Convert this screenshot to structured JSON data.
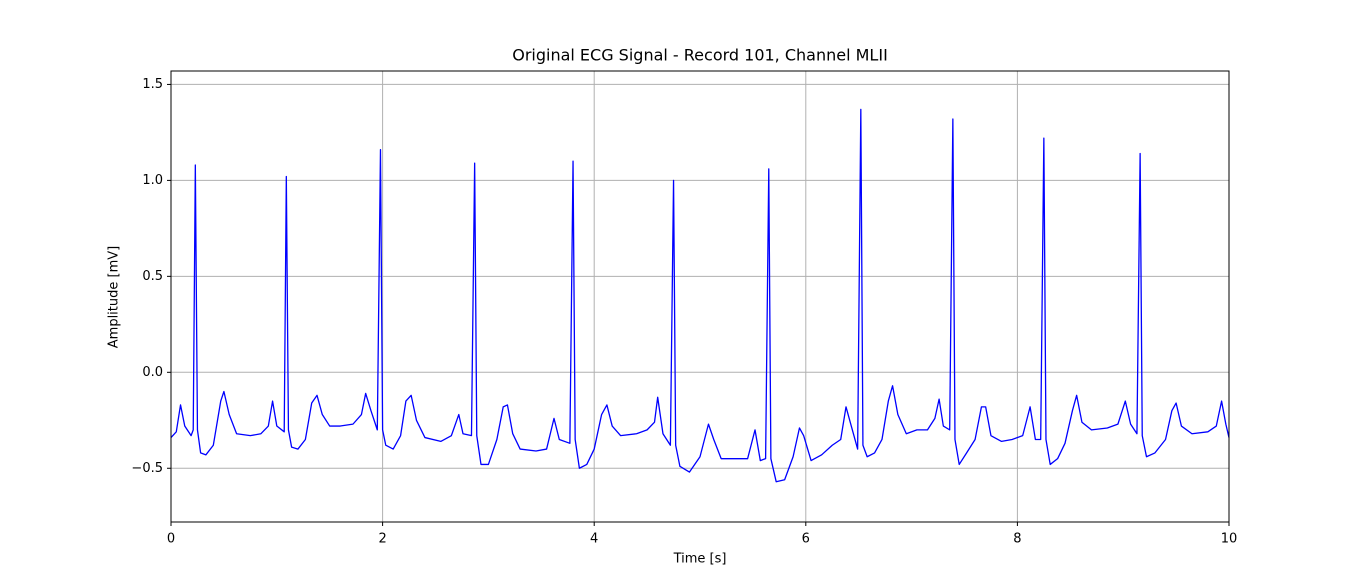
{
  "chart_data": {
    "type": "line",
    "title": "Original ECG Signal - Record 101, Channel MLII",
    "xlabel": "Time [s]",
    "ylabel": "Amplitude [mV]",
    "color": "#0000ff",
    "grid": true,
    "xlim": [
      0,
      10
    ],
    "ylim": [
      -0.78,
      1.57
    ],
    "xticks": [
      0,
      2,
      4,
      6,
      8,
      10
    ],
    "yticks": [
      {
        "value": -0.5,
        "label": "−0.5"
      },
      {
        "value": 0,
        "label": "0.0"
      },
      0.5,
      {
        "value": 1,
        "label": "1.0"
      },
      1.5
    ],
    "x": [
      0,
      0.05,
      0.09,
      0.13,
      0.19,
      0.21,
      0.23,
      0.25,
      0.28,
      0.33,
      0.4,
      0.47,
      0.5,
      0.55,
      0.62,
      0.75,
      0.85,
      0.92,
      0.96,
      1,
      1.07,
      1.09,
      1.11,
      1.14,
      1.2,
      1.27,
      1.33,
      1.38,
      1.43,
      1.5,
      1.6,
      1.72,
      1.8,
      1.84,
      1.89,
      1.95,
      1.98,
      2,
      2.03,
      2.1,
      2.17,
      2.22,
      2.27,
      2.32,
      2.4,
      2.55,
      2.65,
      2.72,
      2.76,
      2.84,
      2.87,
      2.89,
      2.93,
      3,
      3.08,
      3.14,
      3.18,
      3.23,
      3.3,
      3.45,
      3.55,
      3.62,
      3.67,
      3.77,
      3.8,
      3.82,
      3.86,
      3.93,
      4,
      4.07,
      4.12,
      4.17,
      4.25,
      4.4,
      4.5,
      4.57,
      4.6,
      4.65,
      4.72,
      4.75,
      4.77,
      4.81,
      4.9,
      5,
      5.08,
      5.13,
      5.2,
      5.35,
      5.45,
      5.52,
      5.57,
      5.62,
      5.65,
      5.67,
      5.72,
      5.8,
      5.88,
      5.94,
      5.98,
      6.05,
      6.15,
      6.25,
      6.33,
      6.38,
      6.43,
      6.49,
      6.52,
      6.54,
      6.58,
      6.65,
      6.72,
      6.78,
      6.82,
      6.87,
      6.95,
      7.05,
      7.15,
      7.22,
      7.26,
      7.3,
      7.36,
      7.39,
      7.41,
      7.45,
      7.52,
      7.6,
      7.66,
      7.7,
      7.75,
      7.85,
      7.95,
      8.05,
      8.12,
      8.17,
      8.22,
      8.25,
      8.27,
      8.31,
      8.38,
      8.45,
      8.52,
      8.56,
      8.61,
      8.7,
      8.85,
      8.95,
      9.02,
      9.07,
      9.13,
      9.16,
      9.18,
      9.22,
      9.3,
      9.4,
      9.46,
      9.5,
      9.55,
      9.65,
      9.8,
      9.88,
      9.93,
      9.97,
      10
    ],
    "values": [
      -0.34,
      -0.31,
      -0.17,
      -0.28,
      -0.33,
      -0.3,
      1.08,
      -0.3,
      -0.42,
      -0.43,
      -0.38,
      -0.15,
      -0.1,
      -0.22,
      -0.32,
      -0.33,
      -0.32,
      -0.28,
      -0.15,
      -0.28,
      -0.31,
      1.02,
      -0.3,
      -0.39,
      -0.4,
      -0.35,
      -0.16,
      -0.12,
      -0.22,
      -0.28,
      -0.28,
      -0.27,
      -0.22,
      -0.11,
      -0.2,
      -0.3,
      1.16,
      -0.3,
      -0.38,
      -0.4,
      -0.33,
      -0.15,
      -0.12,
      -0.25,
      -0.34,
      -0.36,
      -0.33,
      -0.22,
      -0.32,
      -0.33,
      1.09,
      -0.33,
      -0.48,
      -0.48,
      -0.35,
      -0.18,
      -0.17,
      -0.32,
      -0.4,
      -0.41,
      -0.4,
      -0.24,
      -0.35,
      -0.37,
      1.1,
      -0.35,
      -0.5,
      -0.48,
      -0.4,
      -0.22,
      -0.17,
      -0.28,
      -0.33,
      -0.32,
      -0.3,
      -0.26,
      -0.13,
      -0.32,
      -0.38,
      1,
      -0.38,
      -0.49,
      -0.52,
      -0.44,
      -0.27,
      -0.35,
      -0.45,
      -0.45,
      -0.45,
      -0.3,
      -0.46,
      -0.45,
      1.06,
      -0.45,
      -0.57,
      -0.56,
      -0.44,
      -0.29,
      -0.33,
      -0.46,
      -0.43,
      -0.38,
      -0.35,
      -0.18,
      -0.28,
      -0.4,
      1.37,
      -0.38,
      -0.44,
      -0.42,
      -0.35,
      -0.15,
      -0.07,
      -0.22,
      -0.32,
      -0.3,
      -0.3,
      -0.24,
      -0.14,
      -0.28,
      -0.3,
      1.32,
      -0.35,
      -0.48,
      -0.42,
      -0.35,
      -0.18,
      -0.18,
      -0.33,
      -0.36,
      -0.35,
      -0.33,
      -0.18,
      -0.35,
      -0.35,
      1.22,
      -0.35,
      -0.48,
      -0.45,
      -0.37,
      -0.2,
      -0.12,
      -0.26,
      -0.3,
      -0.29,
      -0.27,
      -0.15,
      -0.27,
      -0.32,
      1.14,
      -0.33,
      -0.44,
      -0.42,
      -0.35,
      -0.2,
      -0.16,
      -0.28,
      -0.32,
      -0.31,
      -0.28,
      -0.15,
      -0.27,
      -0.34
    ]
  }
}
